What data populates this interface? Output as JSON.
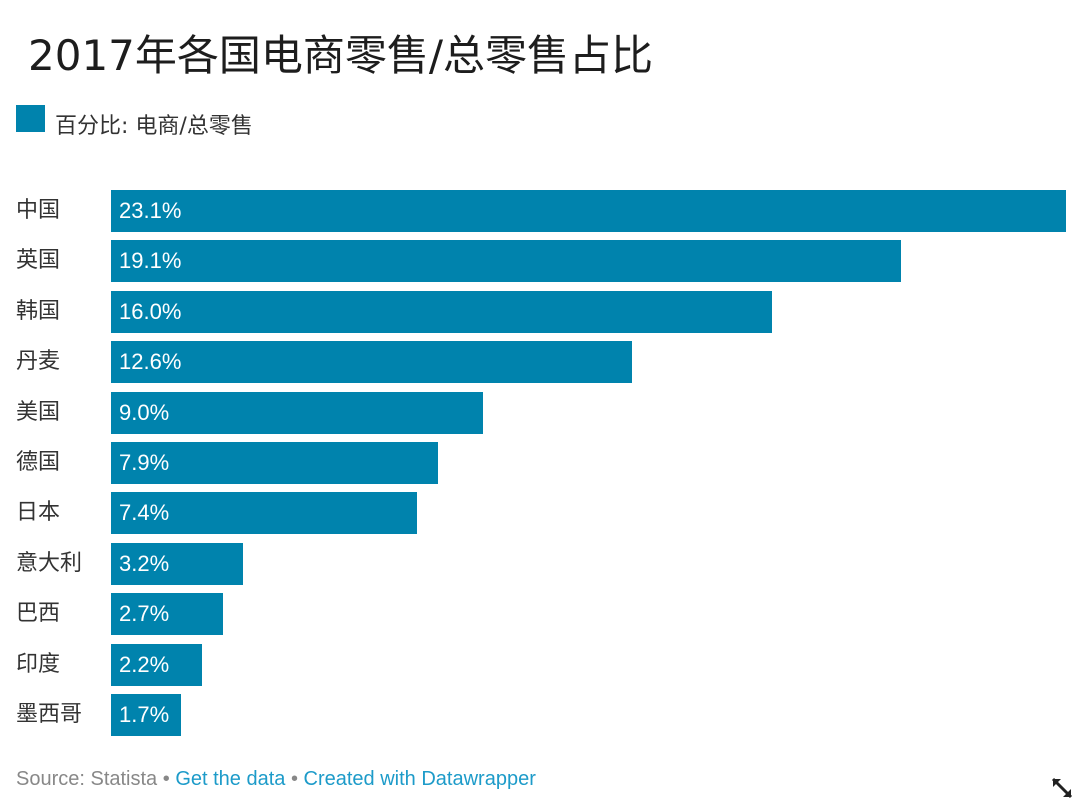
{
  "chart_data": {
    "type": "bar",
    "orientation": "horizontal",
    "title": "2017年各国电商零售/总零售占比",
    "legend": [
      {
        "name": "百分比: 电商/总零售",
        "color": "#0083ad"
      }
    ],
    "categories": [
      "中国",
      "英国",
      "韩国",
      "丹麦",
      "美国",
      "德国",
      "日本",
      "意大利",
      "巴西",
      "印度",
      "墨西哥"
    ],
    "values": [
      23.1,
      19.1,
      16.0,
      12.6,
      9.0,
      7.9,
      7.4,
      3.2,
      2.7,
      2.2,
      1.7
    ],
    "value_labels": [
      "23.1%",
      "19.1%",
      "16.0%",
      "12.6%",
      "9.0%",
      "7.9%",
      "7.4%",
      "3.2%",
      "2.7%",
      "2.2%",
      "1.7%"
    ],
    "xlim": [
      0,
      23.1
    ],
    "grid": false,
    "legend_position": "top-left",
    "bar_color": "#0083ad"
  },
  "footer": {
    "source": "Source: Statista",
    "sep": " • ",
    "get_data": "Get the data",
    "created": "Created with Datawrapper"
  },
  "icons": {
    "expand": "expand-arrows-icon"
  }
}
